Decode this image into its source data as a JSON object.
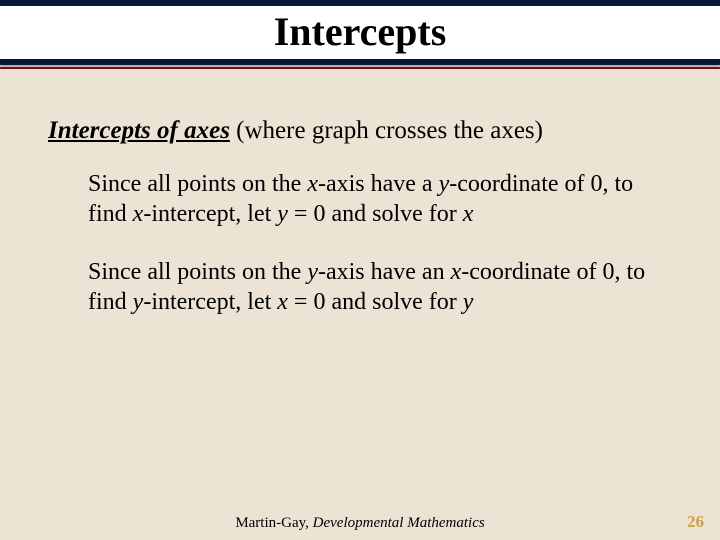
{
  "colors": {
    "slide_bg": "#ede3d4",
    "band_border": "#0a1838",
    "accent_line": "#7a1015",
    "text": "#000000",
    "pagenum": "#c9a24a"
  },
  "title": "Intercepts",
  "heading_bold_italic": "Intercepts of axes",
  "heading_rest": " (where graph crosses the axes)",
  "para1_a": "Since all points on the ",
  "para1_var1": "x",
  "para1_b": "-axis have a ",
  "para1_var2": "y",
  "para1_c": "-coordinate of 0, to find ",
  "para1_var3": "x",
  "para1_d": "-intercept, let ",
  "para1_var4": "y",
  "para1_e": " = 0 and solve for ",
  "para1_var5": "x",
  "para2_a": "Since all points on the ",
  "para2_var1": "y",
  "para2_b": "-axis have an ",
  "para2_var2": "x",
  "para2_c": "-coordinate of 0, to find ",
  "para2_var3": "y",
  "para2_d": "-intercept, let ",
  "para2_var4": "x",
  "para2_e": " = 0 and solve for ",
  "para2_var5": "y",
  "footer_author": "Martin-Gay, ",
  "footer_book": "Developmental Mathematics",
  "page_number": "26"
}
